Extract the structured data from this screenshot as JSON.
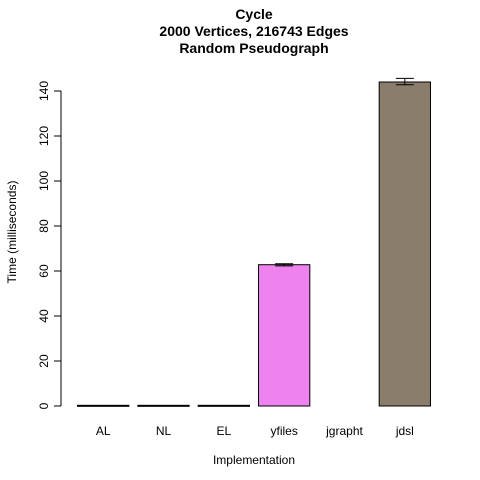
{
  "chart_data": {
    "type": "bar",
    "title_lines": [
      "Cycle",
      "2000 Vertices, 216743 Edges",
      "Random Pseudograph"
    ],
    "xlabel": "Implementation",
    "ylabel": "Time (milliseconds)",
    "categories": [
      "AL",
      "NL",
      "EL",
      "yfiles",
      "jgrapht",
      "jdsl"
    ],
    "values": [
      0.3,
      0.3,
      0.3,
      62.8,
      0,
      144.0
    ],
    "error_low": [
      null,
      null,
      null,
      62.3,
      null,
      142.8
    ],
    "error_high": [
      null,
      null,
      null,
      63.2,
      null,
      145.6
    ],
    "colors": [
      "#000000",
      "#000000",
      "#000000",
      "#ee82ee",
      null,
      "#8b7d6b"
    ],
    "ylim": [
      0,
      150
    ],
    "yticks": [
      0,
      20,
      40,
      60,
      80,
      100,
      120,
      140
    ],
    "grid": false,
    "legend": "none"
  }
}
